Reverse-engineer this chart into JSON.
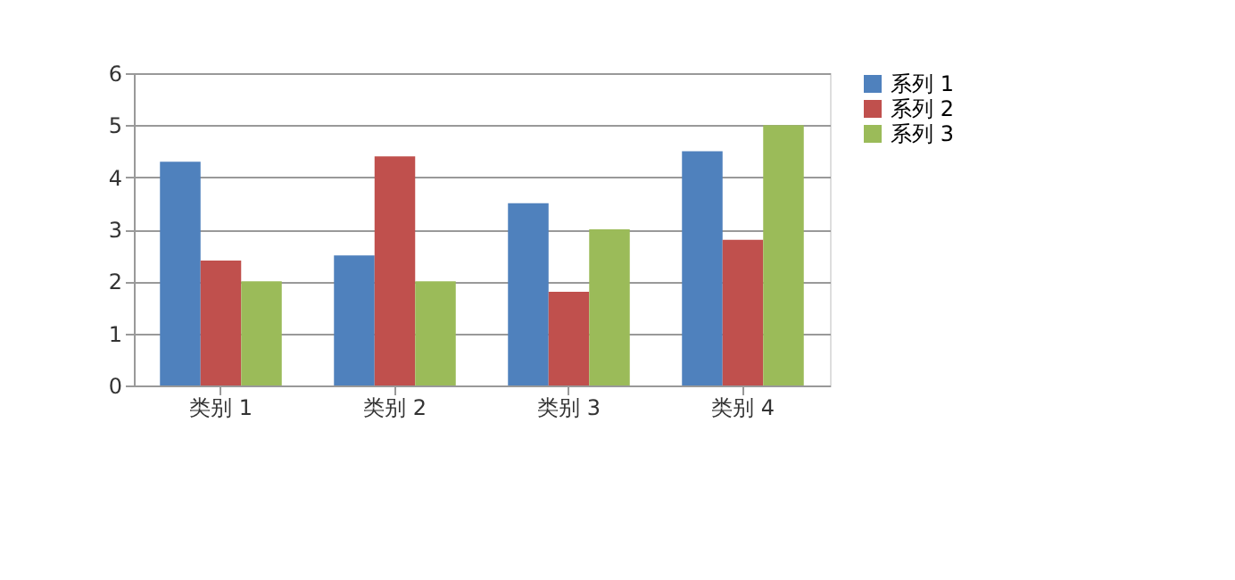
{
  "chart_data": {
    "type": "bar",
    "categories": [
      "类别 1",
      "类别 2",
      "类别 3",
      "类别 4"
    ],
    "series": [
      {
        "name": "系列 1",
        "color": "#4f81bd",
        "values": [
          4.3,
          2.5,
          3.5,
          4.5
        ]
      },
      {
        "name": "系列 2",
        "color": "#c0504d",
        "values": [
          2.4,
          4.4,
          1.8,
          2.8
        ]
      },
      {
        "name": "系列 3",
        "color": "#9bbb59",
        "values": [
          2,
          2,
          3,
          5
        ]
      }
    ],
    "ylim": [
      0,
      6
    ],
    "yticks": [
      0,
      1,
      2,
      3,
      4,
      5,
      6
    ],
    "grid": "y",
    "legend": "right"
  }
}
